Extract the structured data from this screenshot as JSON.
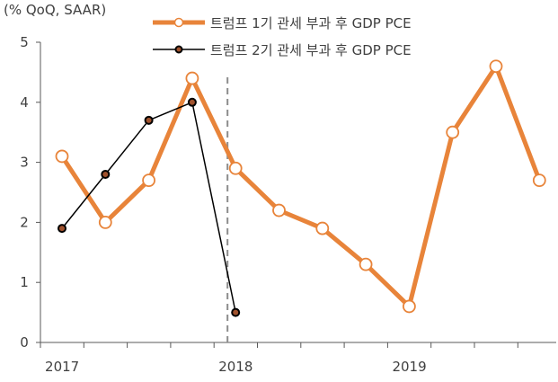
{
  "chart_data": {
    "type": "line",
    "unit_label": "(% QoQ, SAAR)",
    "ylim": [
      0,
      5
    ],
    "yticks": [
      "0",
      "1",
      "2",
      "3",
      "4",
      "5"
    ],
    "xticks": [
      "2017",
      "2018",
      "2019"
    ],
    "grid": false,
    "legend_position": "top",
    "reference_line": {
      "x_index": 4,
      "style": "dashed",
      "color": "#8c8c8c"
    },
    "series": [
      {
        "name": "트럼프 1기 관세 부과 후 GDP PCE",
        "color": "#e8843a",
        "marker": "hollow-circle",
        "values": [
          3.1,
          2.0,
          2.7,
          4.4,
          2.9,
          2.2,
          1.9,
          1.3,
          0.6,
          3.5,
          4.6,
          2.7
        ]
      },
      {
        "name": "트럼프 2기 관세 부과 후 GDP PCE",
        "color": "#000000",
        "marker": "filled-dot",
        "values": [
          1.9,
          2.8,
          3.7,
          4.0,
          0.5
        ]
      }
    ]
  }
}
